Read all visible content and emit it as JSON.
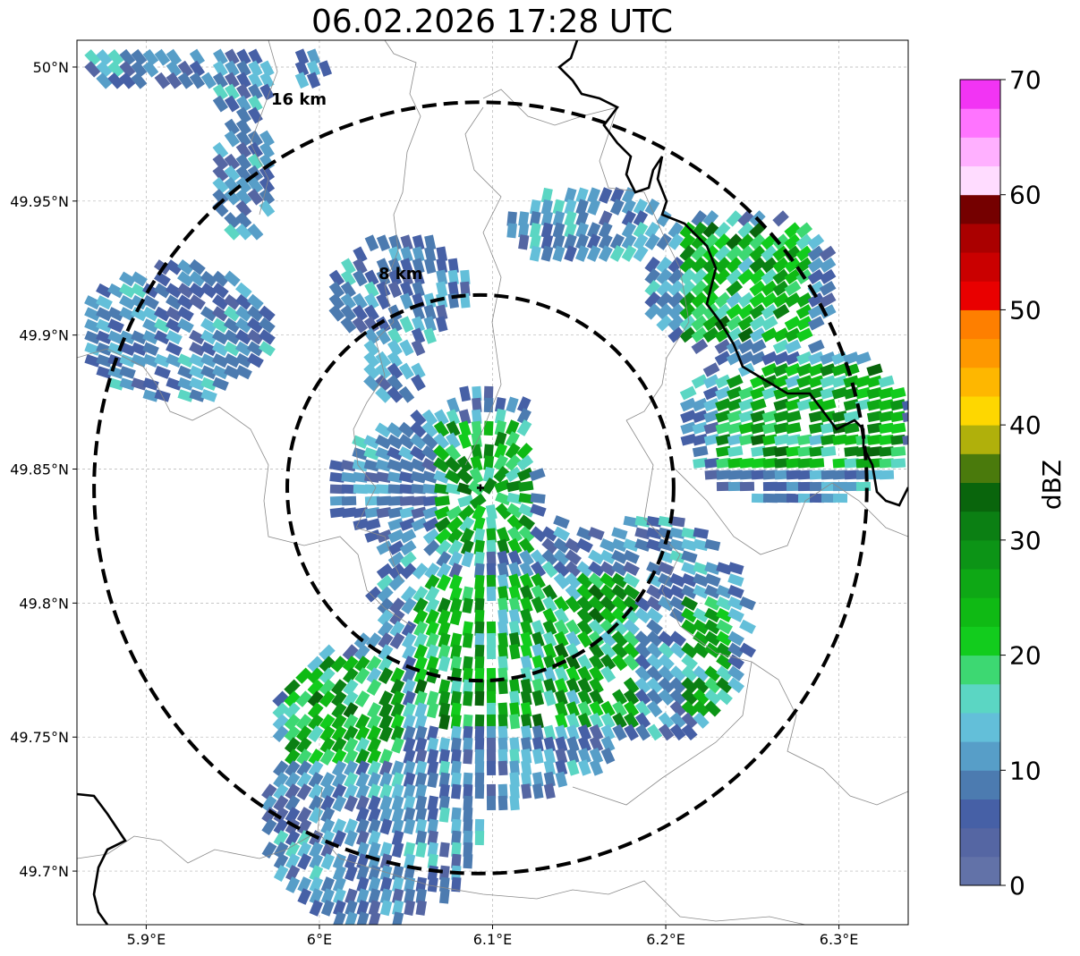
{
  "title": "06.02.2026 17:28 UTC",
  "map": {
    "lon_range": [
      5.86,
      6.34
    ],
    "lat_range": [
      49.68,
      50.01
    ],
    "lon_ticks": [
      {
        "value": 5.9,
        "label": "5.9°E"
      },
      {
        "value": 6.0,
        "label": "6°E"
      },
      {
        "value": 6.1,
        "label": "6.1°E"
      },
      {
        "value": 6.2,
        "label": "6.2°E"
      },
      {
        "value": 6.3,
        "label": "6.3°E"
      }
    ],
    "lat_ticks": [
      {
        "value": 50.0,
        "label": "50°N"
      },
      {
        "value": 49.95,
        "label": "49.95°N"
      },
      {
        "value": 49.9,
        "label": "49.9°N"
      },
      {
        "value": 49.85,
        "label": "49.85°N"
      },
      {
        "value": 49.8,
        "label": "49.8°N"
      },
      {
        "value": 49.75,
        "label": "49.75°N"
      },
      {
        "value": 49.7,
        "label": "49.7°N"
      }
    ],
    "radar_site": {
      "lon": 6.093,
      "lat": 49.843
    },
    "range_rings": [
      {
        "radius_km": 8,
        "label": "8 km"
      },
      {
        "radius_km": 16,
        "label": "16 km"
      }
    ],
    "grid": true
  },
  "colorbar": {
    "label": "dBZ",
    "vmin": 0,
    "vmax": 70,
    "tick_labels": [
      "0",
      "10",
      "20",
      "30",
      "40",
      "50",
      "60",
      "70"
    ],
    "colors": [
      "#6272a8",
      "#5566a3",
      "#4660a6",
      "#4c7bb0",
      "#579ec8",
      "#63bfd9",
      "#5bd6c3",
      "#3dd872",
      "#12cc1d",
      "#0fba14",
      "#0ea815",
      "#0c9416",
      "#0b7f13",
      "#09650c",
      "#4a7a0c",
      "#b0b00b",
      "#fed700",
      "#feb700",
      "#fe9800",
      "#fe7f00",
      "#e90000",
      "#ca0000",
      "#aa0000",
      "#750000",
      "#ffdcff",
      "#ffb0ff",
      "#ff74ff",
      "#f234f4"
    ]
  }
}
